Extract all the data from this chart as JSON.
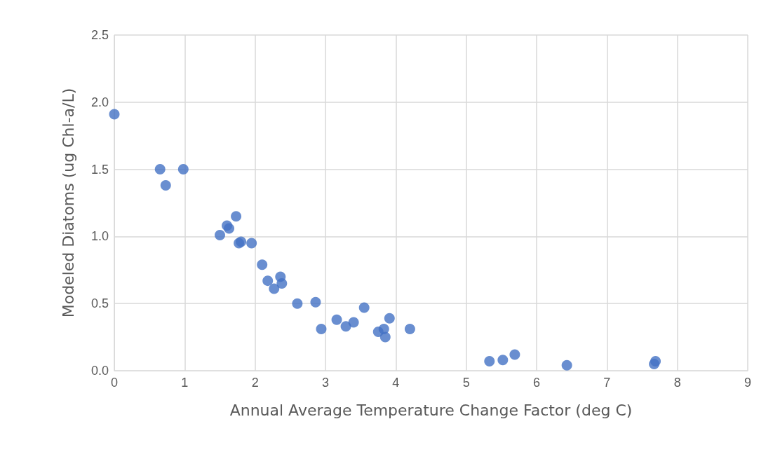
{
  "chart_data": {
    "type": "scatter",
    "xlabel": "Annual Average Temperature Change Factor (deg C)",
    "ylabel": "Modeled Diatoms (ug Chl-a/L)",
    "x": [
      0,
      0.65,
      0.73,
      0.98,
      1.5,
      1.6,
      1.63,
      1.73,
      1.77,
      1.8,
      1.95,
      2.1,
      2.18,
      2.27,
      2.36,
      2.38,
      2.6,
      2.86,
      2.94,
      3.16,
      3.29,
      3.4,
      3.55,
      3.75,
      3.83,
      3.85,
      3.91,
      4.2,
      5.33,
      5.52,
      5.69,
      6.43,
      7.67,
      7.69
    ],
    "values": [
      1.91,
      1.5,
      1.38,
      1.5,
      1.01,
      1.08,
      1.06,
      1.15,
      0.95,
      0.96,
      0.95,
      0.79,
      0.67,
      0.61,
      0.7,
      0.65,
      0.5,
      0.51,
      0.31,
      0.38,
      0.33,
      0.36,
      0.47,
      0.29,
      0.31,
      0.25,
      0.39,
      0.31,
      0.07,
      0.08,
      0.12,
      0.04,
      0.05,
      0.07
    ],
    "color": "#4472c4",
    "marker": "circle",
    "grid": true,
    "xlim": [
      0,
      9
    ],
    "xticks": [
      0,
      1,
      2,
      3,
      4,
      5,
      6,
      7,
      8,
      9
    ],
    "ylim": [
      0,
      2.5
    ],
    "yticks": [
      {
        "value": 0,
        "label": "0.0"
      },
      {
        "value": 0.5,
        "label": "0.5"
      },
      {
        "value": 1,
        "label": "1.0"
      },
      {
        "value": 1.5,
        "label": "1.5"
      },
      {
        "value": 2,
        "label": "2.0"
      },
      {
        "value": 2.5,
        "label": "2.5"
      }
    ]
  }
}
